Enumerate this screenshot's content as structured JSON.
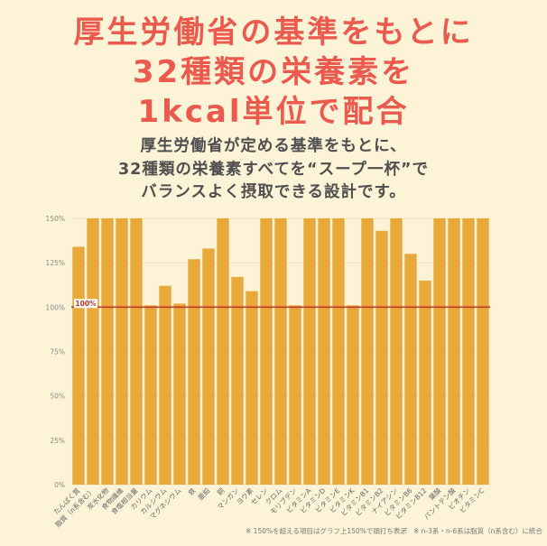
{
  "headline": {
    "line1": "厚生労働省の基準をもとに",
    "line2": "32種類の栄養素を",
    "line3": "1kcal単位で配合"
  },
  "subtitle": {
    "line1": "厚生労働省が定める基準をもとに、",
    "line2": "32種類の栄養素すべてを“スープ一杯”で",
    "line3": "バランスよく摂取できる設計です。"
  },
  "footnotes": {
    "note1": "※ 150%を超える項目はグラフ上150%で頭打ち表示",
    "separator": "／",
    "note2": "※ n-3系・n-6系は脂質（n系含む）に統合"
  },
  "colors": {
    "bar": "#e9a93a",
    "reference_line": "#c0392b",
    "headline": "#ec5a4e",
    "grid": "#e6dcc0"
  },
  "chart_data": {
    "type": "bar",
    "categories": [
      "たんぱく質",
      "脂質（n系含む）",
      "炭水化物",
      "食物繊維",
      "食塩相当量",
      "カリウム",
      "カルシウム",
      "マグネシウム",
      "鉄",
      "亜鉛",
      "銅",
      "マンガン",
      "ヨウ素",
      "セレン",
      "クロム",
      "モリブデン",
      "ビタミンA",
      "ビタミンD",
      "ビタミンE",
      "ビタミンK",
      "ビタミンB1",
      "ビタミンB2",
      "ナイアシン",
      "ビタミンB6",
      "ビタミンB12",
      "葉酸",
      "パントテン酸",
      "ビオチン",
      "ビタミンC"
    ],
    "values": [
      134,
      150,
      150,
      150,
      150,
      101,
      112,
      102,
      127,
      133,
      150,
      117,
      109,
      150,
      150,
      101,
      150,
      150,
      150,
      101,
      150,
      143,
      150,
      130,
      115,
      150,
      150,
      150,
      150
    ],
    "yticks": [
      "0%",
      "25%",
      "50%",
      "75%",
      "100%",
      "125%",
      "150%"
    ],
    "ylim": [
      0,
      150
    ],
    "reference_value": 100,
    "reference_label": "100%",
    "title": "",
    "xlabel": "",
    "ylabel": ""
  }
}
